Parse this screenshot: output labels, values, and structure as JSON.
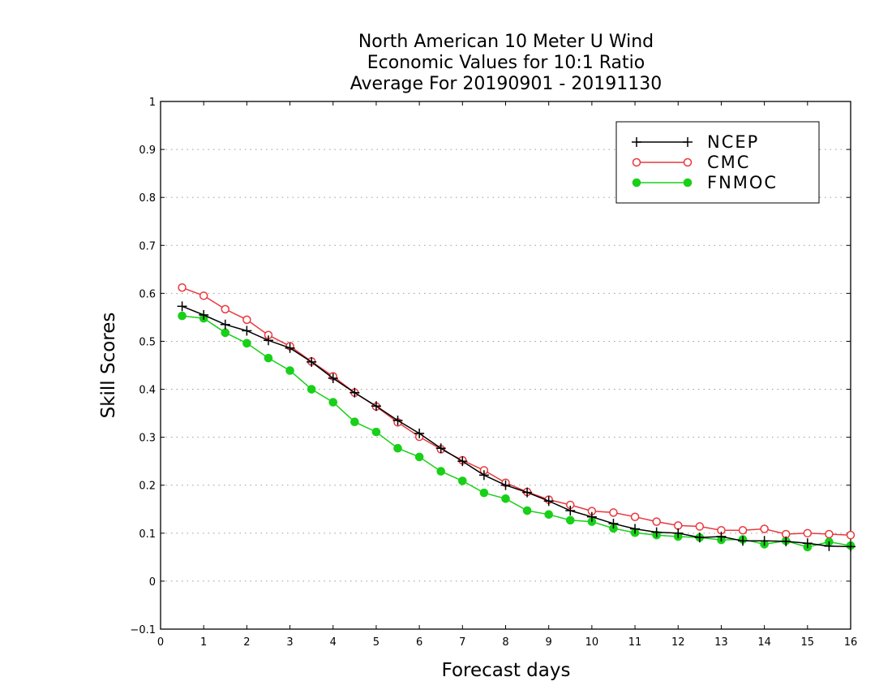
{
  "chart_data": {
    "type": "line",
    "title_lines": [
      "North American 10 Meter U Wind",
      "Economic Values for 10:1 Ratio",
      "Average For 20190901 - 20191130"
    ],
    "xlabel": "Forecast days",
    "ylabel": "Skill Scores",
    "xlim": [
      0,
      16
    ],
    "ylim": [
      -0.1,
      1
    ],
    "x_ticks": [
      0,
      1,
      2,
      3,
      4,
      5,
      6,
      7,
      8,
      9,
      10,
      11,
      12,
      13,
      14,
      15,
      16
    ],
    "x_tick_labels": [
      "0",
      "1",
      "2",
      "3",
      "4",
      "5",
      "6",
      "7",
      "8",
      "9",
      "10",
      "11",
      "12",
      "13",
      "14",
      "15",
      "16"
    ],
    "y_ticks": [
      -0.1,
      0,
      0.1,
      0.2,
      0.3,
      0.4,
      0.5,
      0.6,
      0.7,
      0.8,
      0.9,
      1
    ],
    "y_tick_labels": [
      "−0.1",
      "0",
      "0.1",
      "0.2",
      "0.3",
      "0.4",
      "0.5",
      "0.6",
      "0.7",
      "0.8",
      "0.9",
      "1"
    ],
    "grid": "horizontal dotted",
    "legend_position": "top-right",
    "x": [
      0.5,
      1,
      1.5,
      2,
      2.5,
      3,
      3.5,
      4,
      4.5,
      5,
      5.5,
      6,
      6.5,
      7,
      7.5,
      8,
      8.5,
      9,
      9.5,
      10,
      10.5,
      11,
      11.5,
      12,
      12.5,
      13,
      13.5,
      14,
      14.5,
      15,
      15.5,
      16
    ],
    "series": [
      {
        "name": "NCEP",
        "color": "#000000",
        "marker": "plus",
        "values": [
          0.573,
          0.555,
          0.535,
          0.522,
          0.502,
          0.486,
          0.457,
          0.423,
          0.393,
          0.365,
          0.335,
          0.308,
          0.277,
          0.25,
          0.221,
          0.2,
          0.185,
          0.167,
          0.147,
          0.134,
          0.12,
          0.109,
          0.102,
          0.1,
          0.091,
          0.093,
          0.084,
          0.084,
          0.083,
          0.079,
          0.073,
          0.072
        ]
      },
      {
        "name": "CMC",
        "color": "#e8383d",
        "marker": "open-circle",
        "values": [
          0.612,
          0.595,
          0.567,
          0.545,
          0.513,
          0.49,
          0.458,
          0.427,
          0.393,
          0.364,
          0.331,
          0.301,
          0.275,
          0.252,
          0.231,
          0.205,
          0.186,
          0.17,
          0.159,
          0.146,
          0.143,
          0.134,
          0.124,
          0.116,
          0.114,
          0.106,
          0.106,
          0.109,
          0.098,
          0.1,
          0.098,
          0.096
        ]
      },
      {
        "name": "FNMOC",
        "color": "#18d018",
        "marker": "filled-circle",
        "values": [
          0.553,
          0.548,
          0.518,
          0.496,
          0.465,
          0.439,
          0.4,
          0.373,
          0.332,
          0.311,
          0.277,
          0.259,
          0.229,
          0.209,
          0.184,
          0.172,
          0.147,
          0.139,
          0.127,
          0.124,
          0.11,
          0.101,
          0.096,
          0.093,
          0.091,
          0.086,
          0.087,
          0.077,
          0.084,
          0.071,
          0.082,
          0.074
        ]
      }
    ]
  }
}
